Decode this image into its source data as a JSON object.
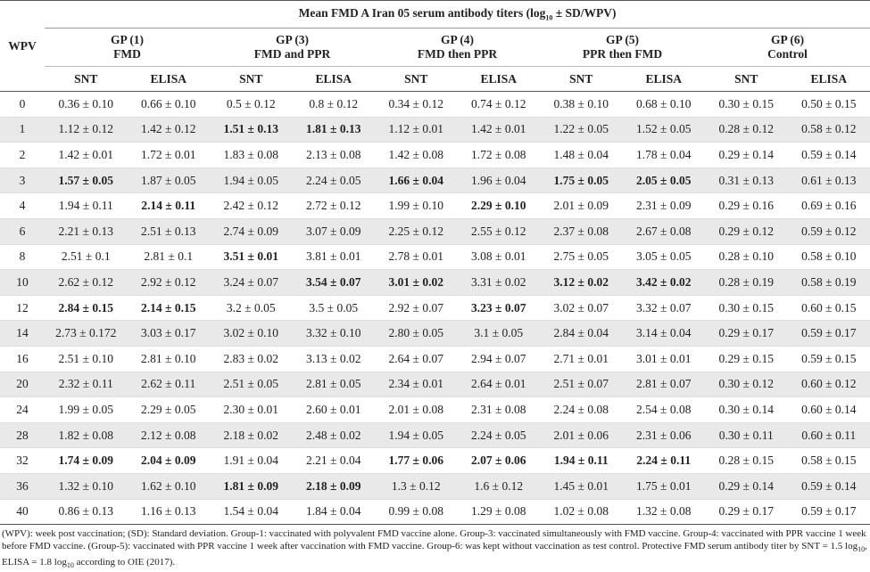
{
  "table": {
    "title_parts": [
      "Mean FMD A Iran 05 serum antibody titers (log",
      "10",
      " ± SD/WPV)"
    ],
    "corner": "WPV",
    "groups": [
      [
        "GP (1)",
        "FMD"
      ],
      [
        "GP (3)",
        "FMD and PPR"
      ],
      [
        "GP (4)",
        "FMD then PPR"
      ],
      [
        "GP (5)",
        "PPR then FMD"
      ],
      [
        "GP (6)",
        "Control"
      ]
    ],
    "subheaders": [
      "SNT",
      "ELISA",
      "SNT",
      "ELISA",
      "SNT",
      "ELISA",
      "SNT",
      "ELISA",
      "SNT",
      "ELISA"
    ],
    "rows": [
      {
        "wpv": "0",
        "cells": [
          "0.36 ± 0.10",
          "0.66 ± 0.10",
          "0.5 ± 0.12",
          "0.8 ± 0.12",
          "0.34 ± 0.12",
          "0.74 ± 0.12",
          "0.38 ± 0.10",
          "0.68 ± 0.10",
          "0.30 ± 0.15",
          "0.50 ± 0.15"
        ],
        "bold": []
      },
      {
        "wpv": "1",
        "cells": [
          "1.12 ± 0.12",
          "1.42 ± 0.12",
          "1.51 ± 0.13",
          "1.81 ± 0.13",
          "1.12 ± 0.01",
          "1.42 ± 0.01",
          "1.22 ± 0.05",
          "1.52 ± 0.05",
          "0.28 ± 0.12",
          "0.58 ± 0.12"
        ],
        "bold": [
          2,
          3
        ]
      },
      {
        "wpv": "2",
        "cells": [
          "1.42 ± 0.01",
          "1.72 ± 0.01",
          "1.83 ± 0.08",
          "2.13 ± 0.08",
          "1.42 ± 0.08",
          "1.72 ± 0.08",
          "1.48 ± 0.04",
          "1.78 ± 0.04",
          "0.29 ± 0.14",
          "0.59 ± 0.14"
        ],
        "bold": []
      },
      {
        "wpv": "3",
        "cells": [
          "1.57 ± 0.05",
          "1.87 ± 0.05",
          "1.94 ± 0.05",
          "2.24 ± 0.05",
          "1.66 ± 0.04",
          "1.96 ± 0.04",
          "1.75 ± 0.05",
          "2.05 ± 0.05",
          "0.31 ± 0.13",
          "0.61 ± 0.13"
        ],
        "bold": [
          0,
          4,
          6,
          7
        ]
      },
      {
        "wpv": "4",
        "cells": [
          "1.94 ± 0.11",
          "2.14 ± 0.11",
          "2.42 ± 0.12",
          "2.72 ± 0.12",
          "1.99 ± 0.10",
          "2.29 ± 0.10",
          "2.01 ± 0.09",
          "2.31 ± 0.09",
          "0.29 ± 0.16",
          "0.69 ± 0.16"
        ],
        "bold": [
          1,
          5
        ]
      },
      {
        "wpv": "6",
        "cells": [
          "2.21 ± 0.13",
          "2.51 ± 0.13",
          "2.74 ± 0.09",
          "3.07 ± 0.09",
          "2.25 ± 0.12",
          "2.55 ± 0.12",
          "2.37 ± 0.08",
          "2.67 ± 0.08",
          "0.29 ± 0.12",
          "0.59 ± 0.12"
        ],
        "bold": []
      },
      {
        "wpv": "8",
        "cells": [
          "2.51 ± 0.1",
          "2.81 ± 0.1",
          "3.51 ± 0.01",
          "3.81 ± 0.01",
          "2.78 ± 0.01",
          "3.08 ± 0.01",
          "2.75 ± 0.05",
          "3.05 ± 0.05",
          "0.28 ± 0.10",
          "0.58 ± 0.10"
        ],
        "bold": [
          2
        ]
      },
      {
        "wpv": "10",
        "cells": [
          "2.62 ± 0.12",
          "2.92 ± 0.12",
          "3.24 ± 0.07",
          "3.54 ± 0.07",
          "3.01 ± 0.02",
          "3.31 ± 0.02",
          "3.12 ± 0.02",
          "3.42 ± 0.02",
          "0.28 ± 0.19",
          "0.58 ± 0.19"
        ],
        "bold": [
          3,
          4,
          6,
          7
        ]
      },
      {
        "wpv": "12",
        "cells": [
          "2.84 ± 0.15",
          "2.14 ± 0.15",
          "3.2 ± 0.05",
          "3.5 ± 0.05",
          "2.92 ± 0.07",
          "3.23 ± 0.07",
          "3.02 ± 0.07",
          "3.32 ± 0.07",
          "0.30 ± 0.15",
          "0.60 ± 0.15"
        ],
        "bold": [
          0,
          1,
          5
        ]
      },
      {
        "wpv": "14",
        "cells": [
          "2.73 ± 0.172",
          "3.03 ± 0.17",
          "3.02 ± 0.10",
          "3.32 ± 0.10",
          "2.80 ± 0.05",
          "3.1 ± 0.05",
          "2.84 ± 0.04",
          "3.14 ± 0.04",
          "0.29 ± 0.17",
          "0.59 ± 0.17"
        ],
        "bold": []
      },
      {
        "wpv": "16",
        "cells": [
          "2.51 ± 0.10",
          "2.81 ± 0.10",
          "2.83 ± 0.02",
          "3.13 ± 0.02",
          "2.64 ± 0.07",
          "2.94 ± 0.07",
          "2.71 ± 0.01",
          "3.01 ± 0.01",
          "0.29 ± 0.15",
          "0.59 ± 0.15"
        ],
        "bold": []
      },
      {
        "wpv": "20",
        "cells": [
          "2.32 ± 0.11",
          "2.62 ± 0.11",
          "2.51 ± 0.05",
          "2.81 ± 0.05",
          "2.34 ± 0.01",
          "2.64 ± 0.01",
          "2.51 ± 0.07",
          "2.81 ± 0.07",
          "0.30 ± 0.12",
          "0.60 ± 0.12"
        ],
        "bold": []
      },
      {
        "wpv": "24",
        "cells": [
          "1.99 ± 0.05",
          "2.29 ± 0.05",
          "2.30 ± 0.01",
          "2.60 ± 0.01",
          "2.01 ± 0.08",
          "2.31 ± 0.08",
          "2.24 ± 0.08",
          "2.54 ± 0.08",
          "0.30 ± 0.14",
          "0.60 ± 0.14"
        ],
        "bold": []
      },
      {
        "wpv": "28",
        "cells": [
          "1.82 ± 0.08",
          "2.12 ± 0.08",
          "2.18 ± 0.02",
          "2.48 ± 0.02",
          "1.94 ± 0.05",
          "2.24 ± 0.05",
          "2.01 ± 0.06",
          "2.31 ± 0.06",
          "0.30 ± 0.11",
          "0.60 ± 0.11"
        ],
        "bold": []
      },
      {
        "wpv": "32",
        "cells": [
          "1.74 ± 0.09",
          "2.04 ± 0.09",
          "1.91 ± 0.04",
          "2.21 ± 0.04",
          "1.77 ± 0.06",
          "2.07 ± 0.06",
          "1.94 ± 0.11",
          "2.24 ± 0.11",
          "0.28 ± 0.15",
          "0.58 ± 0.15"
        ],
        "bold": [
          0,
          1,
          4,
          5,
          6,
          7
        ]
      },
      {
        "wpv": "36",
        "cells": [
          "1.32 ± 0.10",
          "1.62 ± 0.10",
          "1.81 ± 0.09",
          "2.18 ± 0.09",
          "1.3 ± 0.12",
          "1.6 ± 0.12",
          "1.45 ± 0.01",
          "1.75 ± 0.01",
          "0.29 ± 0.14",
          "0.59 ± 0.14"
        ],
        "bold": [
          2,
          3
        ]
      },
      {
        "wpv": "40",
        "cells": [
          "0.86 ± 0.13",
          "1.16 ± 0.13",
          "1.54 ± 0.04",
          "1.84 ± 0.04",
          "0.99 ± 0.08",
          "1.29 ± 0.08",
          "1.02 ± 0.08",
          "1.32 ± 0.08",
          "0.29 ± 0.17",
          "0.59 ± 0.17"
        ],
        "bold": []
      }
    ]
  },
  "footnote_parts": [
    "(WPV): week post vaccination; (SD): Standard deviation. Group-1: vaccinated with polyvalent FMD vaccine alone. Group-3: vaccinated simultaneously with FMD vaccine. Group-4: vaccinated with PPR vaccine 1 week before FMD vaccine. (Group-5): vaccinated with PPR vaccine 1 week after vaccination with FMD vaccine. Group-6: was kept without vaccination as test control. Protective FMD serum antibody titer by SNT = 1.5 log",
    "10",
    ", ELISA = 1.8 log",
    "10",
    " according to OIE (2017)."
  ]
}
